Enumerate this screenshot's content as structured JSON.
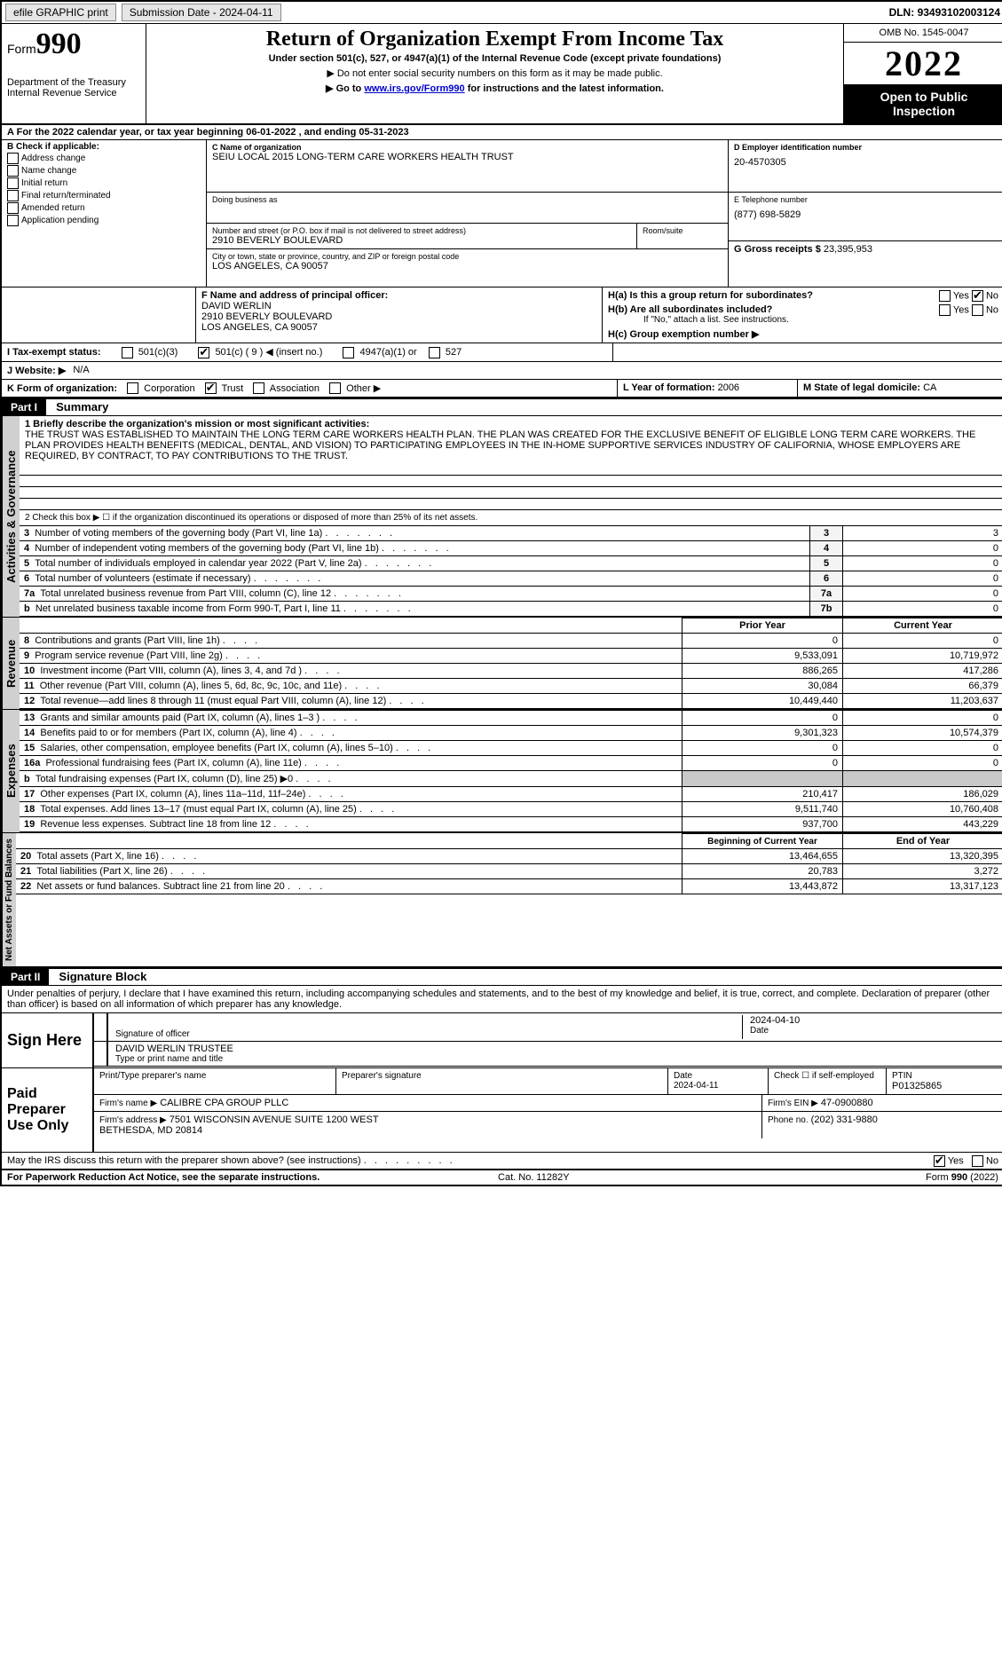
{
  "topbar": {
    "efile": "efile GRAPHIC print",
    "submission_label": "Submission Date - ",
    "submission_date": "2024-04-11",
    "dln_label": "DLN: ",
    "dln": "93493102003124"
  },
  "header": {
    "form_label": "Form",
    "form_number": "990",
    "dept": "Department of the Treasury",
    "irs": "Internal Revenue Service",
    "title": "Return of Organization Exempt From Income Tax",
    "subtitle": "Under section 501(c), 527, or 4947(a)(1) of the Internal Revenue Code (except private foundations)",
    "note1": "▶ Do not enter social security numbers on this form as it may be made public.",
    "note2_prefix": "▶ Go to ",
    "note2_link": "www.irs.gov/Form990",
    "note2_suffix": " for instructions and the latest information.",
    "omb": "OMB No. 1545-0047",
    "year": "2022",
    "otp": "Open to Public Inspection"
  },
  "line_a": "For the 2022 calendar year, or tax year beginning 06-01-2022   , and ending 05-31-2023",
  "box_b": {
    "title": "B Check if applicable:",
    "items": [
      "Address change",
      "Name change",
      "Initial return",
      "Final return/terminated",
      "Amended return",
      "Application pending"
    ]
  },
  "box_c": {
    "name_label": "C Name of organization",
    "name": "SEIU LOCAL 2015 LONG-TERM CARE WORKERS HEALTH TRUST",
    "dba_label": "Doing business as",
    "dba": "",
    "street_label": "Number and street (or P.O. box if mail is not delivered to street address)",
    "room_label": "Room/suite",
    "street": "2910 BEVERLY BOULEVARD",
    "city_label": "City or town, state or province, country, and ZIP or foreign postal code",
    "city": "LOS ANGELES, CA  90057"
  },
  "box_d": {
    "label": "D Employer identification number",
    "value": "20-4570305"
  },
  "box_e": {
    "label": "E Telephone number",
    "value": "(877) 698-5829"
  },
  "box_g": {
    "label": "G Gross receipts $",
    "value": "23,395,953"
  },
  "box_f": {
    "label": "F  Name and address of principal officer:",
    "name": "DAVID WERLIN",
    "street": "2910 BEVERLY BOULEVARD",
    "city": "LOS ANGELES, CA  90057"
  },
  "box_h": {
    "a_label": "H(a)  Is this a group return for subordinates?",
    "b_label": "H(b)  Are all subordinates included?",
    "b_note": "If \"No,\" attach a list. See instructions.",
    "c_label": "H(c)  Group exemption number ▶",
    "yes": "Yes",
    "no": "No"
  },
  "box_i": {
    "label": "I     Tax-exempt status:",
    "opts": [
      "501(c)(3)",
      "501(c) ( 9 ) ◀ (insert no.)",
      "4947(a)(1) or",
      "527"
    ]
  },
  "box_j": {
    "label": "J    Website: ▶",
    "value": "N/A"
  },
  "box_k": {
    "label": "K Form of organization:",
    "opts": [
      "Corporation",
      "Trust",
      "Association",
      "Other ▶"
    ]
  },
  "box_l": {
    "label": "L Year of formation:",
    "value": "2006"
  },
  "box_m": {
    "label": "M State of legal domicile:",
    "value": "CA"
  },
  "part1": {
    "header": "Part I",
    "title": "Summary",
    "mission_label": "1   Briefly describe the organization's mission or most significant activities:",
    "mission": "THE TRUST WAS ESTABLISHED TO MAINTAIN THE LONG TERM CARE WORKERS HEALTH PLAN. THE PLAN WAS CREATED FOR THE EXCLUSIVE BENEFIT OF ELIGIBLE LONG TERM CARE WORKERS. THE PLAN PROVIDES HEALTH BENEFITS (MEDICAL, DENTAL, AND VISION) TO PARTICIPATING EMPLOYEES IN THE IN-HOME SUPPORTIVE SERVICES INDUSTRY OF CALIFORNIA, WHOSE EMPLOYERS ARE REQUIRED, BY CONTRACT, TO PAY CONTRIBUTIONS TO THE TRUST.",
    "line2": "2    Check this box ▶ ☐  if the organization discontinued its operations or disposed of more than 25% of its net assets.",
    "governance_tab": "Activities & Governance",
    "revenue_tab": "Revenue",
    "expenses_tab": "Expenses",
    "netassets_tab": "Net Assets or Fund Balances",
    "rows_gov": [
      {
        "n": "3",
        "d": "Number of voting members of the governing body (Part VI, line 1a)",
        "ln": "3",
        "v": "3"
      },
      {
        "n": "4",
        "d": "Number of independent voting members of the governing body (Part VI, line 1b)",
        "ln": "4",
        "v": "0"
      },
      {
        "n": "5",
        "d": "Total number of individuals employed in calendar year 2022 (Part V, line 2a)",
        "ln": "5",
        "v": "0"
      },
      {
        "n": "6",
        "d": "Total number of volunteers (estimate if necessary)",
        "ln": "6",
        "v": "0"
      },
      {
        "n": "7a",
        "d": "Total unrelated business revenue from Part VIII, column (C), line 12",
        "ln": "7a",
        "v": "0"
      },
      {
        "n": "b",
        "d": "Net unrelated business taxable income from Form 990-T, Part I, line 11",
        "ln": "7b",
        "v": "0"
      }
    ],
    "col_prior": "Prior Year",
    "col_current": "Current Year",
    "rows_rev": [
      {
        "n": "8",
        "d": "Contributions and grants (Part VIII, line 1h)",
        "p": "0",
        "c": "0"
      },
      {
        "n": "9",
        "d": "Program service revenue (Part VIII, line 2g)",
        "p": "9,533,091",
        "c": "10,719,972"
      },
      {
        "n": "10",
        "d": "Investment income (Part VIII, column (A), lines 3, 4, and 7d )",
        "p": "886,265",
        "c": "417,286"
      },
      {
        "n": "11",
        "d": "Other revenue (Part VIII, column (A), lines 5, 6d, 8c, 9c, 10c, and 11e)",
        "p": "30,084",
        "c": "66,379"
      },
      {
        "n": "12",
        "d": "Total revenue—add lines 8 through 11 (must equal Part VIII, column (A), line 12)",
        "p": "10,449,440",
        "c": "11,203,637"
      }
    ],
    "rows_exp": [
      {
        "n": "13",
        "d": "Grants and similar amounts paid (Part IX, column (A), lines 1–3 )",
        "p": "0",
        "c": "0"
      },
      {
        "n": "14",
        "d": "Benefits paid to or for members (Part IX, column (A), line 4)",
        "p": "9,301,323",
        "c": "10,574,379"
      },
      {
        "n": "15",
        "d": "Salaries, other compensation, employee benefits (Part IX, column (A), lines 5–10)",
        "p": "0",
        "c": "0"
      },
      {
        "n": "16a",
        "d": "Professional fundraising fees (Part IX, column (A), line 11e)",
        "p": "0",
        "c": "0"
      },
      {
        "n": "b",
        "d": "Total fundraising expenses (Part IX, column (D), line 25) ▶0",
        "p": "",
        "c": "",
        "shade": true
      },
      {
        "n": "17",
        "d": "Other expenses (Part IX, column (A), lines 11a–11d, 11f–24e)",
        "p": "210,417",
        "c": "186,029"
      },
      {
        "n": "18",
        "d": "Total expenses. Add lines 13–17 (must equal Part IX, column (A), line 25)",
        "p": "9,511,740",
        "c": "10,760,408"
      },
      {
        "n": "19",
        "d": "Revenue less expenses. Subtract line 18 from line 12",
        "p": "937,700",
        "c": "443,229"
      }
    ],
    "col_boy": "Beginning of Current Year",
    "col_eoy": "End of Year",
    "rows_na": [
      {
        "n": "20",
        "d": "Total assets (Part X, line 16)",
        "p": "13,464,655",
        "c": "13,320,395"
      },
      {
        "n": "21",
        "d": "Total liabilities (Part X, line 26)",
        "p": "20,783",
        "c": "3,272"
      },
      {
        "n": "22",
        "d": "Net assets or fund balances. Subtract line 21 from line 20",
        "p": "13,443,872",
        "c": "13,317,123"
      }
    ]
  },
  "part2": {
    "header": "Part II",
    "title": "Signature Block",
    "decl": "Under penalties of perjury, I declare that I have examined this return, including accompanying schedules and statements, and to the best of my knowledge and belief, it is true, correct, and complete. Declaration of preparer (other than officer) is based on all information of which preparer has any knowledge.",
    "sign_here": "Sign Here",
    "sig_officer": "Signature of officer",
    "sig_date": "2024-04-10",
    "date_label": "Date",
    "officer_name": "DAVID WERLIN  TRUSTEE",
    "type_name_label": "Type or print name and title",
    "paid_prep": "Paid Preparer Use Only",
    "prep_name_label": "Print/Type preparer's name",
    "prep_sig_label": "Preparer's signature",
    "prep_date_label": "Date",
    "prep_date": "2024-04-11",
    "check_self": "Check ☐ if self-employed",
    "ptin_label": "PTIN",
    "ptin": "P01325865",
    "firm_name_label": "Firm's name    ▶",
    "firm_name": "CALIBRE CPA GROUP PLLC",
    "firm_ein_label": "Firm's EIN ▶",
    "firm_ein": "47-0900880",
    "firm_addr_label": "Firm's address ▶",
    "firm_addr": "7501 WISCONSIN AVENUE SUITE 1200 WEST\nBETHESDA, MD  20814",
    "phone_label": "Phone no.",
    "phone": "(202) 331-9880",
    "may_irs": "May the IRS discuss this return with the preparer shown above? (see instructions)",
    "yes": "Yes",
    "no": "No"
  },
  "footer": {
    "left": "For Paperwork Reduction Act Notice, see the separate instructions.",
    "mid": "Cat. No. 11282Y",
    "right_a": "Form ",
    "right_b": "990",
    "right_c": " (2022)"
  },
  "cols": {
    "amount_width": 170,
    "lineno_width": 30
  }
}
